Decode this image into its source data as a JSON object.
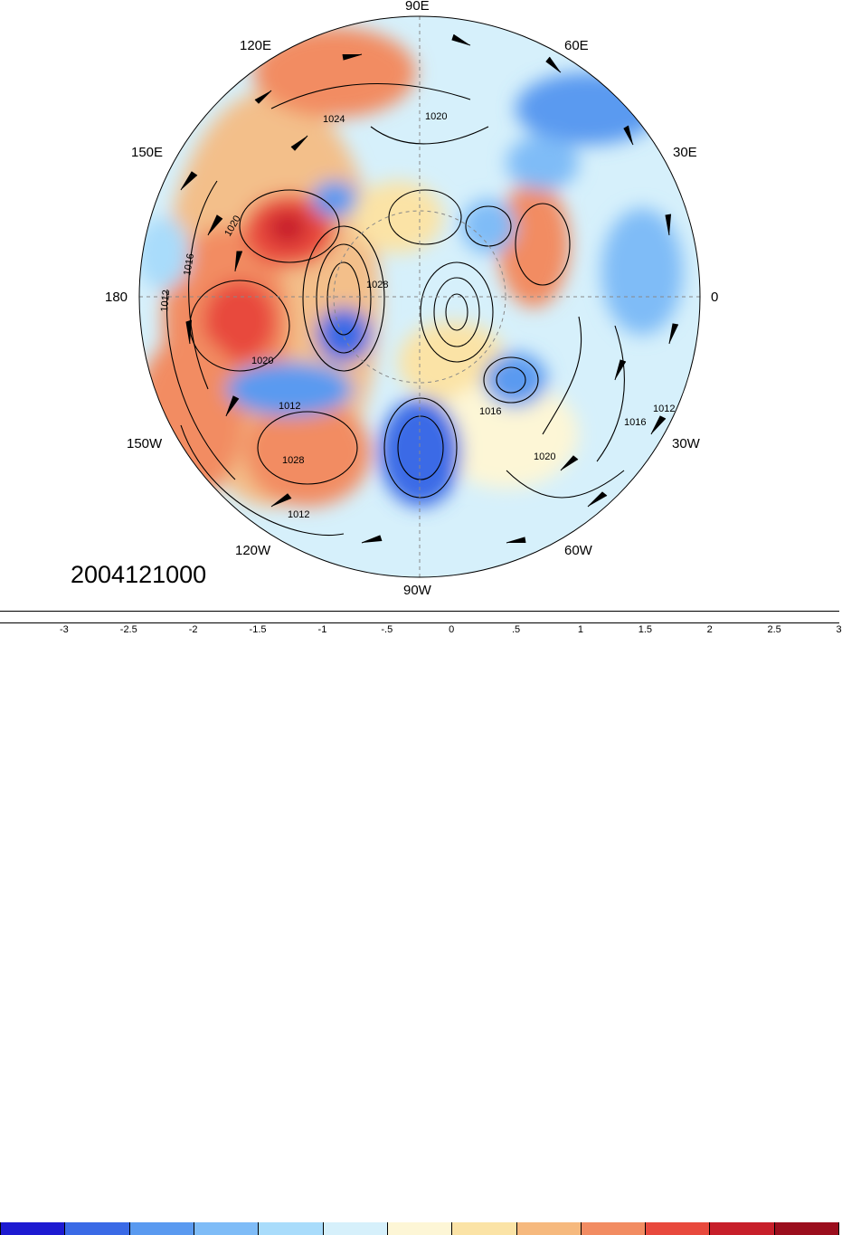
{
  "map": {
    "type": "polar-stereographic",
    "center": "North Pole",
    "field": "anomaly with sea-level pressure contours and wind barbs",
    "longitude_labels": [
      {
        "key": "lon_90E",
        "text": "90E"
      },
      {
        "key": "lon_120E",
        "text": "120E"
      },
      {
        "key": "lon_60E",
        "text": "60E"
      },
      {
        "key": "lon_150E",
        "text": "150E"
      },
      {
        "key": "lon_30E",
        "text": "30E"
      },
      {
        "key": "lon_180",
        "text": "180"
      },
      {
        "key": "lon_0",
        "text": "0"
      },
      {
        "key": "lon_150W",
        "text": "150W"
      },
      {
        "key": "lon_30W",
        "text": "30W"
      },
      {
        "key": "lon_120W",
        "text": "120W"
      },
      {
        "key": "lon_60W",
        "text": "60W"
      },
      {
        "key": "lon_90W",
        "text": "90W"
      }
    ],
    "contour_labels": [
      "1012",
      "1016",
      "1020",
      "1024",
      "1028"
    ],
    "date": "2004121000"
  },
  "colorbar": {
    "colors": [
      "#1d1ad1",
      "#3a6ae6",
      "#5a9af0",
      "#7fbcf7",
      "#a9dcfb",
      "#d6f0fb",
      "#fdf6d6",
      "#fbe3a6",
      "#f6b97e",
      "#f28c62",
      "#e8493d",
      "#c71f2a",
      "#9b0e1d"
    ],
    "tick_labels": [
      "-3",
      "-2.5",
      "-2",
      "-1.5",
      "-1",
      "-.5",
      "0",
      ".5",
      "1",
      "1.5",
      "2",
      "2.5",
      "3"
    ]
  }
}
